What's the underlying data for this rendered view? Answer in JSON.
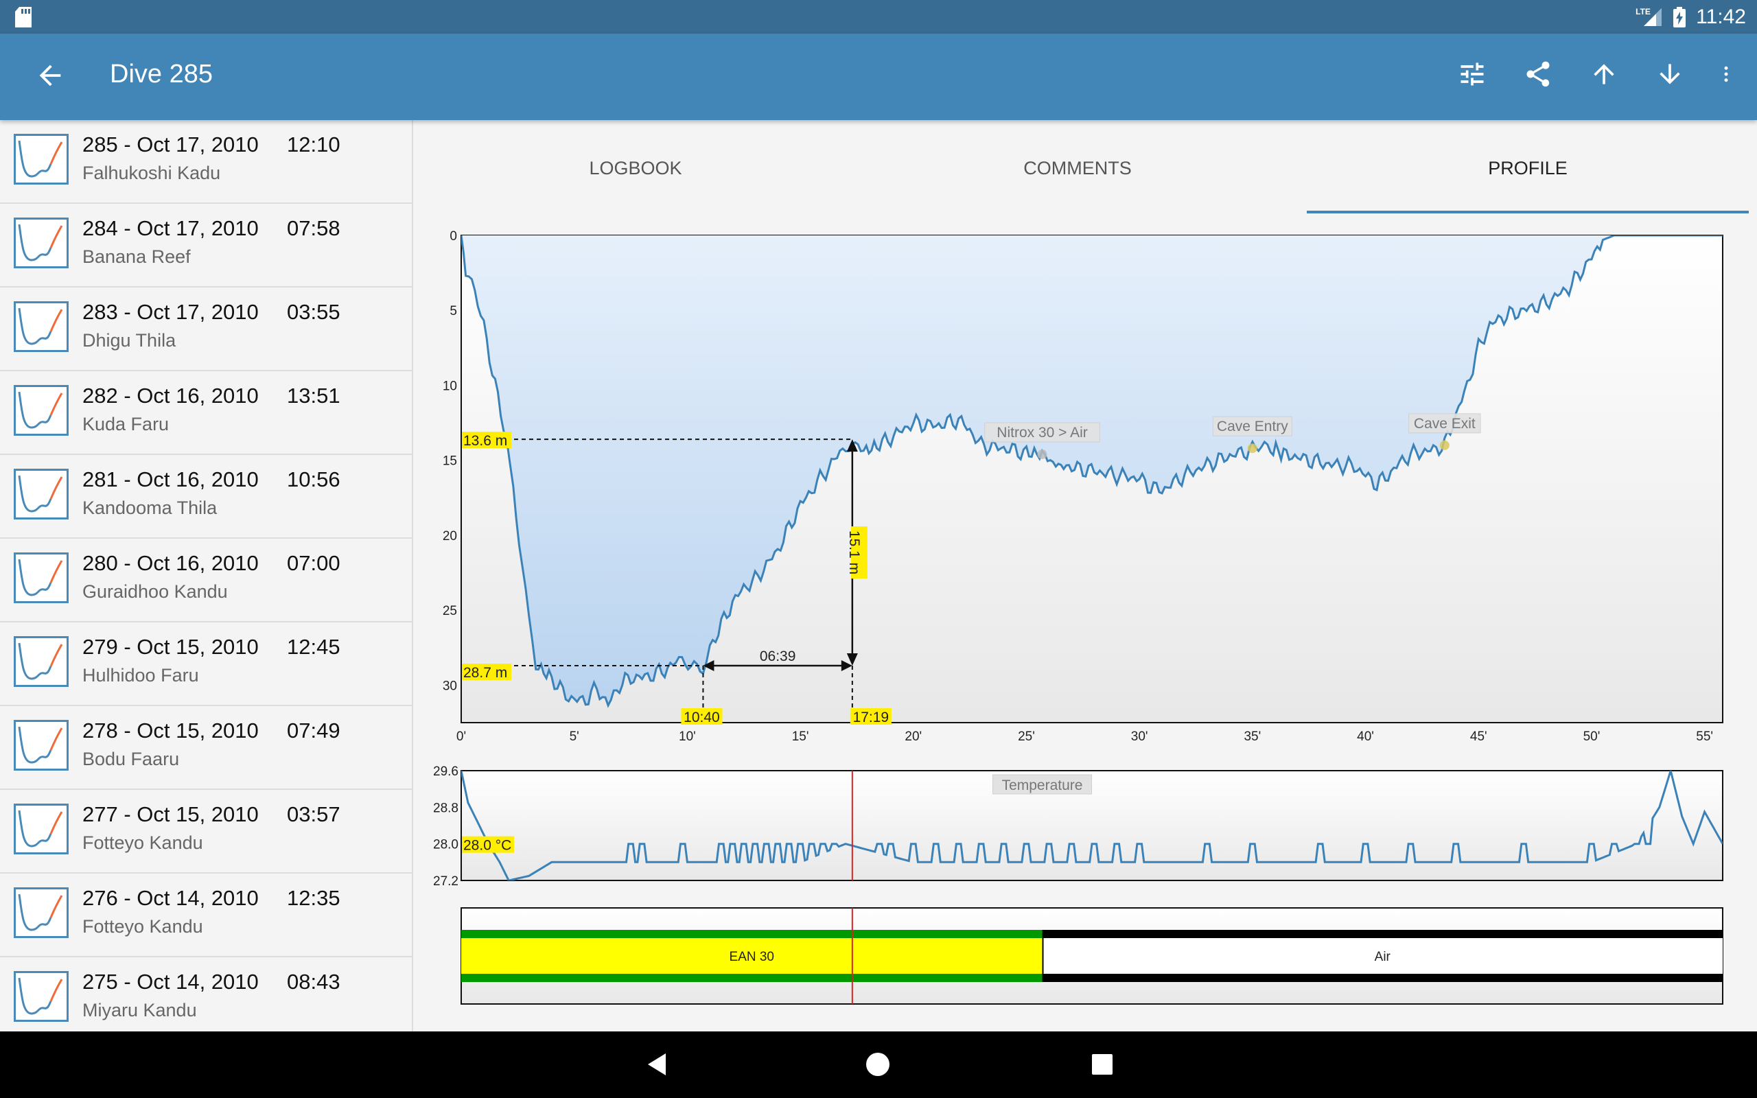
{
  "status_bar": {
    "network": "LTE",
    "time": "11:42"
  },
  "app_bar": {
    "title": "Dive 285"
  },
  "dives": [
    {
      "label": "285 - Oct 17, 2010",
      "time": "12:10",
      "site": "Falhukoshi Kadu"
    },
    {
      "label": "284 - Oct 17, 2010",
      "time": "07:58",
      "site": "Banana Reef"
    },
    {
      "label": "283 - Oct 17, 2010",
      "time": "03:55",
      "site": "Dhigu Thila"
    },
    {
      "label": "282 - Oct 16, 2010",
      "time": "13:51",
      "site": "Kuda Faru"
    },
    {
      "label": "281 - Oct 16, 2010",
      "time": "10:56",
      "site": "Kandooma Thila"
    },
    {
      "label": "280 - Oct 16, 2010",
      "time": "07:00",
      "site": "Guraidhoo Kandu"
    },
    {
      "label": "279 - Oct 15, 2010",
      "time": "12:45",
      "site": "Hulhidoo Faru"
    },
    {
      "label": "278 - Oct 15, 2010",
      "time": "07:49",
      "site": "Bodu Faaru"
    },
    {
      "label": "277 - Oct 15, 2010",
      "time": "03:57",
      "site": "Fotteyo Kandu"
    },
    {
      "label": "276 - Oct 14, 2010",
      "time": "12:35",
      "site": "Fotteyo Kandu"
    },
    {
      "label": "275 - Oct 14, 2010",
      "time": "08:43",
      "site": "Miyaru Kandu"
    }
  ],
  "tabs": [
    "LOGBOOK",
    "COMMENTS",
    "PROFILE"
  ],
  "active_tab": "PROFILE",
  "colors": {
    "status": "#386c93",
    "appbar": "#4285b7",
    "profile_line": "#3b82b8",
    "highlight": "#ffee00",
    "gas_green": "#009900",
    "gas_yellow": "#ffff00",
    "marker_red": "#dd2222"
  },
  "chart_data": {
    "type": "line",
    "depth_profile": {
      "x_unit": "min",
      "x_ticks": [
        "0'",
        "5'",
        "10'",
        "15'",
        "20'",
        "25'",
        "30'",
        "35'",
        "40'",
        "45'",
        "50'",
        "55'"
      ],
      "y_ticks": [
        "0",
        "5",
        "10",
        "15",
        "20",
        "25",
        "30"
      ],
      "xlim": [
        0,
        55.8
      ],
      "ylim": [
        0,
        32.5
      ],
      "y_inverted": true,
      "points": [
        [
          0,
          0
        ],
        [
          0.2,
          2.5
        ],
        [
          0.6,
          4
        ],
        [
          1,
          6
        ],
        [
          1.5,
          10
        ],
        [
          2,
          13.6
        ],
        [
          2.3,
          17
        ],
        [
          2.7,
          22
        ],
        [
          3,
          26
        ],
        [
          3.3,
          28.7
        ],
        [
          4,
          29.5
        ],
        [
          4.5,
          30.5
        ],
        [
          5,
          31
        ],
        [
          5.5,
          31
        ],
        [
          6,
          30.2
        ],
        [
          6.5,
          31.3
        ],
        [
          7,
          30
        ],
        [
          7.5,
          29.5
        ],
        [
          8,
          29.5
        ],
        [
          8.5,
          29.3
        ],
        [
          9,
          29
        ],
        [
          9.5,
          28.5
        ],
        [
          10.3,
          28.5
        ],
        [
          10.7,
          28.7
        ],
        [
          11,
          27.5
        ],
        [
          11.5,
          26
        ],
        [
          12,
          24.5
        ],
        [
          12.5,
          23.5
        ],
        [
          13,
          23
        ],
        [
          13.5,
          22
        ],
        [
          14,
          21
        ],
        [
          14.5,
          19.5
        ],
        [
          15,
          18
        ],
        [
          15.5,
          17
        ],
        [
          16,
          16
        ],
        [
          16.5,
          15
        ],
        [
          17,
          14
        ],
        [
          17.3,
          13.6
        ],
        [
          17.8,
          14.4
        ],
        [
          18.5,
          14
        ],
        [
          19,
          13.5
        ],
        [
          19.5,
          13
        ],
        [
          20,
          12.5
        ],
        [
          21,
          12.7
        ],
        [
          22,
          12.3
        ],
        [
          22.5,
          13
        ],
        [
          23,
          14
        ],
        [
          24,
          14.2
        ],
        [
          25,
          14.5
        ],
        [
          25.7,
          14.6
        ],
        [
          26.3,
          15.3
        ],
        [
          27,
          15.5
        ],
        [
          28,
          15.7
        ],
        [
          29,
          16
        ],
        [
          30,
          16.2
        ],
        [
          30.5,
          16.8
        ],
        [
          31,
          17
        ],
        [
          31.5,
          16.5
        ],
        [
          32,
          16
        ],
        [
          33,
          15.3
        ],
        [
          34,
          14.7
        ],
        [
          35,
          14.3
        ],
        [
          35.8,
          14.2
        ],
        [
          36.5,
          14.6
        ],
        [
          37.5,
          15
        ],
        [
          38.5,
          15.3
        ],
        [
          39.5,
          15.4
        ],
        [
          40.5,
          16.6
        ],
        [
          41,
          16
        ],
        [
          41.5,
          15.2
        ],
        [
          42,
          14.6
        ],
        [
          43,
          14.3
        ],
        [
          43.5,
          14
        ],
        [
          44,
          12
        ],
        [
          44.5,
          10
        ],
        [
          45,
          7.5
        ],
        [
          45.5,
          6
        ],
        [
          46,
          5.5
        ],
        [
          47,
          5
        ],
        [
          48,
          4.5
        ],
        [
          49,
          3.5
        ],
        [
          49.5,
          2.5
        ],
        [
          50,
          1.5
        ],
        [
          50.5,
          0.3
        ],
        [
          51,
          0
        ],
        [
          52,
          0
        ],
        [
          53,
          0
        ],
        [
          54,
          0
        ],
        [
          55.8,
          0
        ]
      ],
      "annotations": [
        {
          "label": "Nitrox 30 > Air",
          "x": 25.7,
          "depth": 14.6
        },
        {
          "label": "Cave Entry",
          "x": 35,
          "depth": 14.2
        },
        {
          "label": "Cave Exit",
          "x": 43.5,
          "depth": 14
        }
      ],
      "measure": {
        "depth1": 13.6,
        "depth2": 28.7,
        "depth1_label": "13.6 m",
        "depth2_label": "28.7 m",
        "time1": 10.7,
        "time2": 17.3,
        "time1_label": "10:40",
        "time2_label": "17:19",
        "duration_label": "06:39",
        "delta_depth_label": "15.1 m"
      },
      "cursor_x": 17.3
    },
    "temperature": {
      "label": "Temperature",
      "y_ticks": [
        "29.6",
        "28.8",
        "28.0",
        "27.2"
      ],
      "ylim": [
        27.2,
        29.6
      ],
      "cursor_value_label": "28.0 °C",
      "points": [
        [
          0,
          29.6
        ],
        [
          0.3,
          28.9
        ],
        [
          0.8,
          28.4
        ],
        [
          1.2,
          28.0
        ],
        [
          1.7,
          27.6
        ],
        [
          2.1,
          27.2
        ],
        [
          3,
          27.3
        ],
        [
          4,
          27.6
        ],
        [
          8,
          27.6
        ],
        [
          15,
          27.6
        ],
        [
          17,
          28.0
        ],
        [
          20,
          27.6
        ],
        [
          26,
          27.6
        ],
        [
          30,
          27.6
        ],
        [
          40,
          27.6
        ],
        [
          46,
          27.6
        ],
        [
          50,
          27.6
        ],
        [
          52,
          28.0
        ],
        [
          53,
          28.8
        ],
        [
          53.5,
          29.6
        ],
        [
          54,
          28.6
        ],
        [
          54.5,
          28.0
        ],
        [
          55,
          28.7
        ],
        [
          55.8,
          28.0
        ]
      ],
      "spikes": [
        7.5,
        8,
        9.8,
        11.5,
        12,
        12.5,
        13,
        13.5,
        14,
        14.5,
        15,
        15.5,
        16,
        16.5,
        18.5,
        19,
        20,
        21,
        22,
        23,
        24,
        25,
        26,
        27,
        28,
        29,
        30,
        33,
        35,
        38,
        40,
        42,
        44,
        47,
        50,
        51,
        52,
        52.5
      ]
    },
    "gas": [
      {
        "label": "EAN 30",
        "from": 0,
        "to": 25.7
      },
      {
        "label": "Air",
        "from": 25.7,
        "to": 55.8
      }
    ]
  }
}
